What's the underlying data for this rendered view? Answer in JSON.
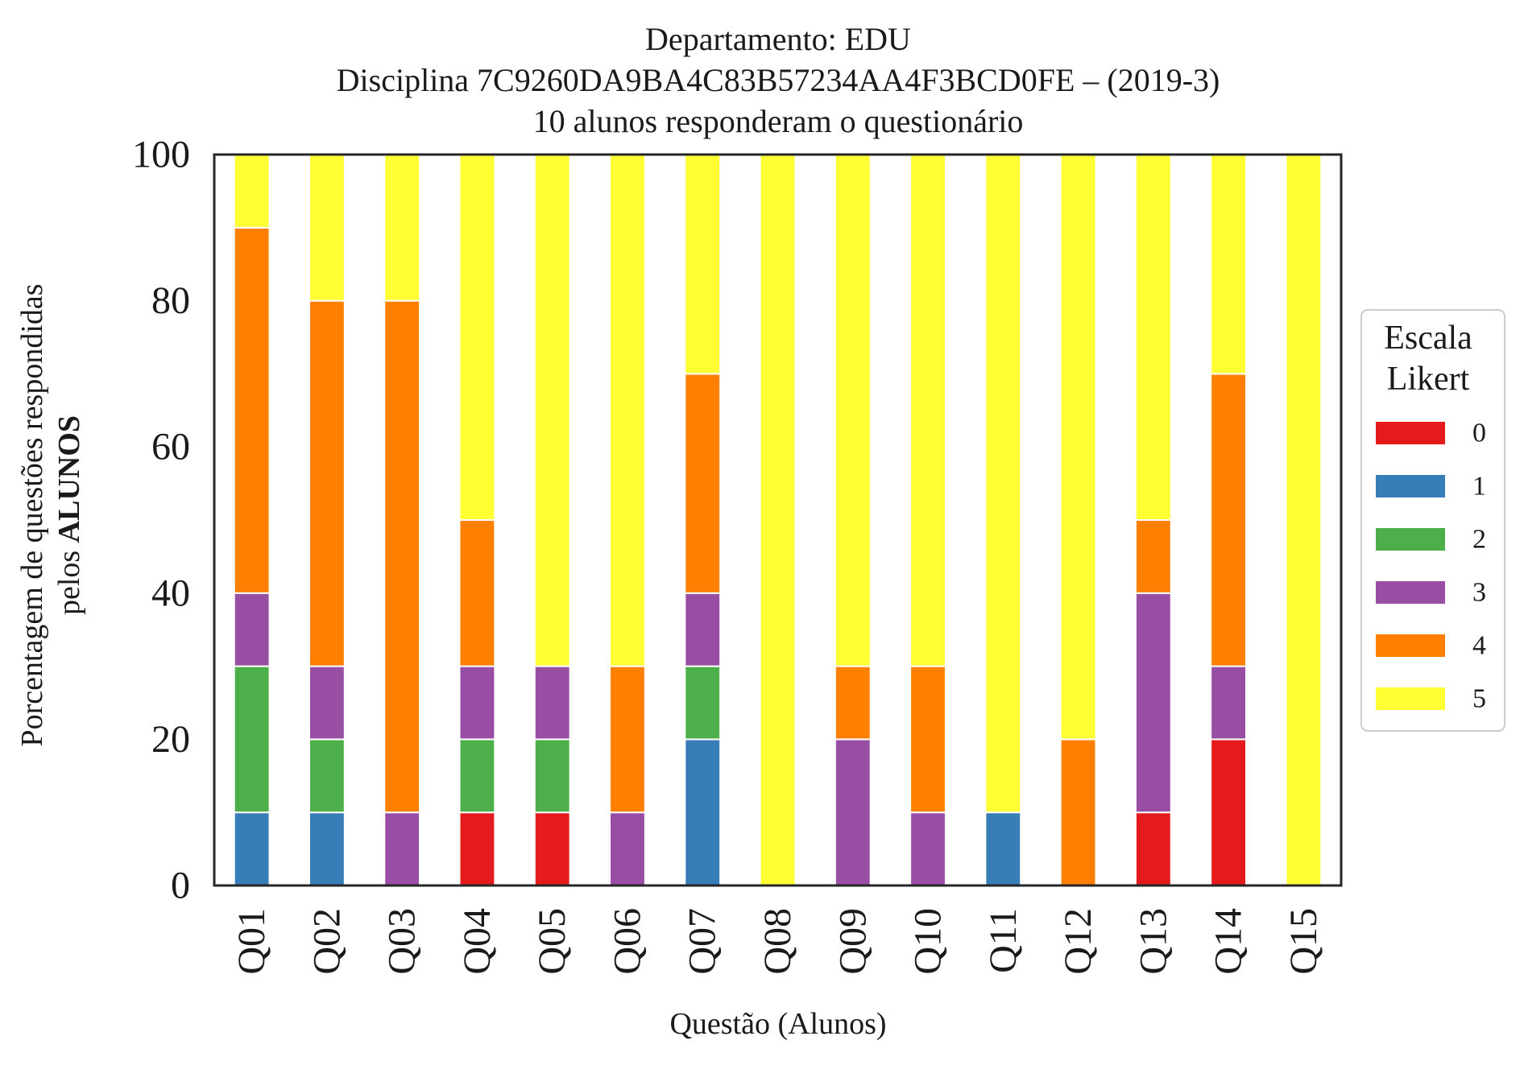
{
  "chart_data": {
    "type": "bar",
    "stacked": true,
    "title": [
      "Departamento: EDU",
      "Disciplina 7C9260DA9BA4C83B57234AA4F3BCD0FE – (2019-3)",
      "10 alunos responderam o questionário"
    ],
    "xlabel": "Questão (Alunos)",
    "ylabel": [
      "Porcentagem de questões respondidas",
      "pelos ",
      "ALUNOS"
    ],
    "ylim": [
      0,
      100
    ],
    "yticks": [
      "0",
      "20",
      "40",
      "60",
      "80",
      "100"
    ],
    "categories": [
      "Q01",
      "Q02",
      "Q03",
      "Q04",
      "Q05",
      "Q06",
      "Q07",
      "Q08",
      "Q09",
      "Q10",
      "Q11",
      "Q12",
      "Q13",
      "Q14",
      "Q15"
    ],
    "legend": {
      "title": [
        "Escala",
        "Likert"
      ],
      "placement": "center-right"
    },
    "grid": false,
    "series": [
      {
        "name": "0",
        "color": "#e41a1c",
        "values": [
          0,
          0,
          0,
          10,
          10,
          0,
          0,
          0,
          0,
          0,
          0,
          0,
          10,
          20,
          0
        ]
      },
      {
        "name": "1",
        "color": "#377eb8",
        "values": [
          10,
          10,
          0,
          0,
          0,
          0,
          20,
          0,
          0,
          0,
          10,
          0,
          0,
          0,
          0
        ]
      },
      {
        "name": "2",
        "color": "#4daf4a",
        "values": [
          20,
          10,
          0,
          10,
          10,
          0,
          10,
          0,
          0,
          0,
          0,
          0,
          0,
          0,
          0
        ]
      },
      {
        "name": "3",
        "color": "#984ea3",
        "values": [
          10,
          10,
          10,
          10,
          10,
          10,
          10,
          0,
          20,
          10,
          0,
          0,
          30,
          10,
          0
        ]
      },
      {
        "name": "4",
        "color": "#ff7f00",
        "values": [
          50,
          50,
          70,
          20,
          0,
          20,
          30,
          0,
          10,
          20,
          0,
          20,
          10,
          40,
          0
        ]
      },
      {
        "name": "5",
        "color": "#ffff33",
        "values": [
          10,
          20,
          20,
          50,
          70,
          70,
          30,
          100,
          70,
          70,
          90,
          80,
          50,
          30,
          100
        ]
      }
    ]
  }
}
